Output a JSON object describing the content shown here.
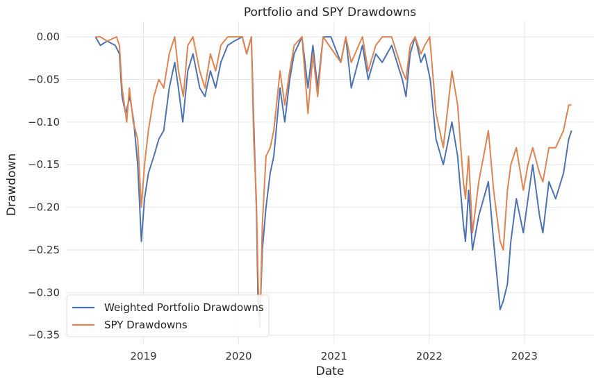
{
  "chart_data": {
    "type": "line",
    "title": "Portfolio and SPY Drawdowns",
    "xlabel": "Date",
    "ylabel": "Drawdown",
    "xlim": [
      "2018-03-10",
      "2023-09-25"
    ],
    "ylim": [
      -0.36,
      0.018
    ],
    "x_ticks": [
      "2019",
      "2020",
      "2021",
      "2022",
      "2023"
    ],
    "y_ticks": [
      "0.00",
      "−0.05",
      "−0.10",
      "−0.15",
      "−0.20",
      "−0.25",
      "−0.30",
      "−0.35"
    ],
    "grid": true,
    "legend_position": "lower-left",
    "series": [
      {
        "name": "Weighted Portfolio Drawdowns",
        "color": "#4c72b0",
        "points": [
          [
            "2018-07-01",
            0.0
          ],
          [
            "2018-07-20",
            -0.01
          ],
          [
            "2018-08-15",
            -0.005
          ],
          [
            "2018-09-15",
            -0.01
          ],
          [
            "2018-10-01",
            -0.02
          ],
          [
            "2018-10-11",
            -0.07
          ],
          [
            "2018-10-25",
            -0.09
          ],
          [
            "2018-11-10",
            -0.07
          ],
          [
            "2018-11-25",
            -0.1
          ],
          [
            "2018-12-10",
            -0.15
          ],
          [
            "2018-12-24",
            -0.24
          ],
          [
            "2019-01-05",
            -0.19
          ],
          [
            "2019-01-20",
            -0.16
          ],
          [
            "2019-02-10",
            -0.14
          ],
          [
            "2019-03-01",
            -0.12
          ],
          [
            "2019-03-20",
            -0.11
          ],
          [
            "2019-04-10",
            -0.06
          ],
          [
            "2019-05-01",
            -0.03
          ],
          [
            "2019-05-15",
            -0.06
          ],
          [
            "2019-06-01",
            -0.1
          ],
          [
            "2019-06-20",
            -0.04
          ],
          [
            "2019-07-10",
            -0.02
          ],
          [
            "2019-08-05",
            -0.06
          ],
          [
            "2019-08-25",
            -0.07
          ],
          [
            "2019-09-15",
            -0.04
          ],
          [
            "2019-10-05",
            -0.06
          ],
          [
            "2019-10-25",
            -0.03
          ],
          [
            "2019-11-20",
            -0.01
          ],
          [
            "2019-12-15",
            -0.005
          ],
          [
            "2020-01-15",
            0.0
          ],
          [
            "2020-02-01",
            -0.02
          ],
          [
            "2020-02-19",
            0.0
          ],
          [
            "2020-02-28",
            -0.1
          ],
          [
            "2020-03-09",
            -0.2
          ],
          [
            "2020-03-16",
            -0.32
          ],
          [
            "2020-03-23",
            -0.33
          ],
          [
            "2020-04-01",
            -0.25
          ],
          [
            "2020-04-15",
            -0.2
          ],
          [
            "2020-05-01",
            -0.16
          ],
          [
            "2020-05-15",
            -0.14
          ],
          [
            "2020-06-08",
            -0.06
          ],
          [
            "2020-06-26",
            -0.1
          ],
          [
            "2020-07-15",
            -0.05
          ],
          [
            "2020-08-01",
            -0.02
          ],
          [
            "2020-08-31",
            0.0
          ],
          [
            "2020-09-23",
            -0.06
          ],
          [
            "2020-10-12",
            -0.01
          ],
          [
            "2020-10-30",
            -0.06
          ],
          [
            "2020-11-20",
            0.0
          ],
          [
            "2020-12-20",
            0.0
          ],
          [
            "2021-01-27",
            -0.03
          ],
          [
            "2021-02-15",
            0.0
          ],
          [
            "2021-03-08",
            -0.06
          ],
          [
            "2021-04-20",
            -0.01
          ],
          [
            "2021-05-12",
            -0.05
          ],
          [
            "2021-06-10",
            -0.02
          ],
          [
            "2021-07-05",
            -0.03
          ],
          [
            "2021-08-10",
            -0.01
          ],
          [
            "2021-09-20",
            -0.05
          ],
          [
            "2021-10-04",
            -0.07
          ],
          [
            "2021-10-20",
            -0.02
          ],
          [
            "2021-11-08",
            0.0
          ],
          [
            "2021-11-30",
            -0.03
          ],
          [
            "2021-12-15",
            -0.02
          ],
          [
            "2022-01-05",
            -0.05
          ],
          [
            "2022-01-27",
            -0.12
          ],
          [
            "2022-02-24",
            -0.15
          ],
          [
            "2022-03-29",
            -0.1
          ],
          [
            "2022-04-20",
            -0.14
          ],
          [
            "2022-05-12",
            -0.22
          ],
          [
            "2022-05-20",
            -0.24
          ],
          [
            "2022-06-01",
            -0.18
          ],
          [
            "2022-06-16",
            -0.25
          ],
          [
            "2022-07-10",
            -0.21
          ],
          [
            "2022-08-16",
            -0.17
          ],
          [
            "2022-09-05",
            -0.24
          ],
          [
            "2022-09-30",
            -0.32
          ],
          [
            "2022-10-12",
            -0.31
          ],
          [
            "2022-10-28",
            -0.29
          ],
          [
            "2022-11-10",
            -0.24
          ],
          [
            "2022-12-01",
            -0.19
          ],
          [
            "2022-12-28",
            -0.23
          ],
          [
            "2023-01-15",
            -0.19
          ],
          [
            "2023-02-02",
            -0.15
          ],
          [
            "2023-02-28",
            -0.21
          ],
          [
            "2023-03-13",
            -0.23
          ],
          [
            "2023-04-05",
            -0.17
          ],
          [
            "2023-05-01",
            -0.19
          ],
          [
            "2023-05-31",
            -0.16
          ],
          [
            "2023-06-20",
            -0.12
          ],
          [
            "2023-07-01",
            -0.11
          ]
        ]
      },
      {
        "name": "SPY Drawdowns",
        "color": "#dd8452",
        "points": [
          [
            "2018-07-01",
            0.0
          ],
          [
            "2018-07-20",
            0.0
          ],
          [
            "2018-08-15",
            -0.005
          ],
          [
            "2018-09-20",
            0.0
          ],
          [
            "2018-10-01",
            -0.01
          ],
          [
            "2018-10-11",
            -0.06
          ],
          [
            "2018-10-29",
            -0.1
          ],
          [
            "2018-11-08",
            -0.06
          ],
          [
            "2018-11-23",
            -0.1
          ],
          [
            "2018-12-10",
            -0.12
          ],
          [
            "2018-12-24",
            -0.2
          ],
          [
            "2019-01-05",
            -0.15
          ],
          [
            "2019-01-20",
            -0.11
          ],
          [
            "2019-02-10",
            -0.07
          ],
          [
            "2019-03-01",
            -0.05
          ],
          [
            "2019-03-20",
            -0.06
          ],
          [
            "2019-04-10",
            -0.02
          ],
          [
            "2019-05-01",
            0.0
          ],
          [
            "2019-05-15",
            -0.04
          ],
          [
            "2019-06-03",
            -0.07
          ],
          [
            "2019-06-20",
            -0.01
          ],
          [
            "2019-07-10",
            0.0
          ],
          [
            "2019-08-05",
            -0.04
          ],
          [
            "2019-08-25",
            -0.06
          ],
          [
            "2019-09-15",
            -0.02
          ],
          [
            "2019-10-05",
            -0.04
          ],
          [
            "2019-10-25",
            -0.01
          ],
          [
            "2019-11-20",
            0.0
          ],
          [
            "2020-01-15",
            0.0
          ],
          [
            "2020-02-01",
            -0.02
          ],
          [
            "2020-02-19",
            0.0
          ],
          [
            "2020-02-28",
            -0.12
          ],
          [
            "2020-03-09",
            -0.19
          ],
          [
            "2020-03-16",
            -0.29
          ],
          [
            "2020-03-23",
            -0.34
          ],
          [
            "2020-04-01",
            -0.22
          ],
          [
            "2020-04-15",
            -0.14
          ],
          [
            "2020-05-01",
            -0.13
          ],
          [
            "2020-05-15",
            -0.11
          ],
          [
            "2020-06-08",
            -0.04
          ],
          [
            "2020-06-26",
            -0.08
          ],
          [
            "2020-07-15",
            -0.04
          ],
          [
            "2020-08-01",
            -0.01
          ],
          [
            "2020-08-31",
            0.0
          ],
          [
            "2020-09-23",
            -0.09
          ],
          [
            "2020-10-12",
            -0.02
          ],
          [
            "2020-10-30",
            -0.07
          ],
          [
            "2020-11-20",
            0.0
          ],
          [
            "2021-01-27",
            -0.03
          ],
          [
            "2021-02-15",
            0.0
          ],
          [
            "2021-03-08",
            -0.03
          ],
          [
            "2021-04-20",
            0.0
          ],
          [
            "2021-05-12",
            -0.04
          ],
          [
            "2021-06-10",
            -0.01
          ],
          [
            "2021-07-05",
            0.0
          ],
          [
            "2021-08-10",
            0.0
          ],
          [
            "2021-09-20",
            -0.04
          ],
          [
            "2021-10-04",
            -0.05
          ],
          [
            "2021-10-20",
            -0.01
          ],
          [
            "2021-11-08",
            0.0
          ],
          [
            "2021-11-30",
            -0.02
          ],
          [
            "2021-12-15",
            -0.01
          ],
          [
            "2022-01-03",
            0.0
          ],
          [
            "2022-01-27",
            -0.09
          ],
          [
            "2022-02-24",
            -0.13
          ],
          [
            "2022-03-29",
            -0.04
          ],
          [
            "2022-04-20",
            -0.08
          ],
          [
            "2022-05-12",
            -0.17
          ],
          [
            "2022-05-20",
            -0.19
          ],
          [
            "2022-06-01",
            -0.14
          ],
          [
            "2022-06-16",
            -0.23
          ],
          [
            "2022-07-10",
            -0.17
          ],
          [
            "2022-08-16",
            -0.11
          ],
          [
            "2022-09-05",
            -0.18
          ],
          [
            "2022-09-30",
            -0.24
          ],
          [
            "2022-10-12",
            -0.25
          ],
          [
            "2022-10-28",
            -0.18
          ],
          [
            "2022-11-10",
            -0.15
          ],
          [
            "2022-12-01",
            -0.13
          ],
          [
            "2022-12-28",
            -0.18
          ],
          [
            "2023-01-15",
            -0.15
          ],
          [
            "2023-02-02",
            -0.13
          ],
          [
            "2023-02-28",
            -0.16
          ],
          [
            "2023-03-13",
            -0.17
          ],
          [
            "2023-04-05",
            -0.13
          ],
          [
            "2023-05-01",
            -0.13
          ],
          [
            "2023-05-31",
            -0.11
          ],
          [
            "2023-06-20",
            -0.08
          ],
          [
            "2023-07-01",
            -0.08
          ]
        ]
      }
    ]
  }
}
